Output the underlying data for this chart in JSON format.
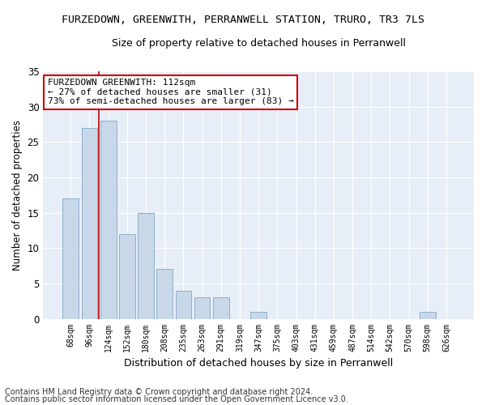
{
  "title": "FURZEDOWN, GREENWITH, PERRANWELL STATION, TRURO, TR3 7LS",
  "subtitle": "Size of property relative to detached houses in Perranwell",
  "xlabel": "Distribution of detached houses by size in Perranwell",
  "ylabel": "Number of detached properties",
  "bar_color": "#c8d8e8",
  "bar_edge_color": "#8ab0cc",
  "background_color": "#e8eef8",
  "grid_color": "#ffffff",
  "fig_facecolor": "#ffffff",
  "categories": [
    "68sqm",
    "96sqm",
    "124sqm",
    "152sqm",
    "180sqm",
    "208sqm",
    "235sqm",
    "263sqm",
    "291sqm",
    "319sqm",
    "347sqm",
    "375sqm",
    "403sqm",
    "431sqm",
    "459sqm",
    "487sqm",
    "514sqm",
    "542sqm",
    "570sqm",
    "598sqm",
    "626sqm"
  ],
  "values": [
    17,
    27,
    28,
    12,
    15,
    7,
    4,
    3,
    3,
    0,
    1,
    0,
    0,
    0,
    0,
    0,
    0,
    0,
    0,
    1,
    0
  ],
  "ylim": [
    0,
    35
  ],
  "yticks": [
    0,
    5,
    10,
    15,
    20,
    25,
    30,
    35
  ],
  "vline_x": 1.5,
  "vline_color": "#cc0000",
  "annotation_text": "FURZEDOWN GREENWITH: 112sqm\n← 27% of detached houses are smaller (31)\n73% of semi-detached houses are larger (83) →",
  "annotation_box_color": "#ffffff",
  "annotation_box_edge": "#cc0000",
  "footer_line1": "Contains HM Land Registry data © Crown copyright and database right 2024.",
  "footer_line2": "Contains public sector information licensed under the Open Government Licence v3.0.",
  "title_fontsize": 9.5,
  "subtitle_fontsize": 9,
  "annotation_fontsize": 8,
  "footer_fontsize": 7,
  "ylabel_fontsize": 8.5,
  "xlabel_fontsize": 9,
  "xtick_fontsize": 7,
  "ytick_fontsize": 8.5
}
